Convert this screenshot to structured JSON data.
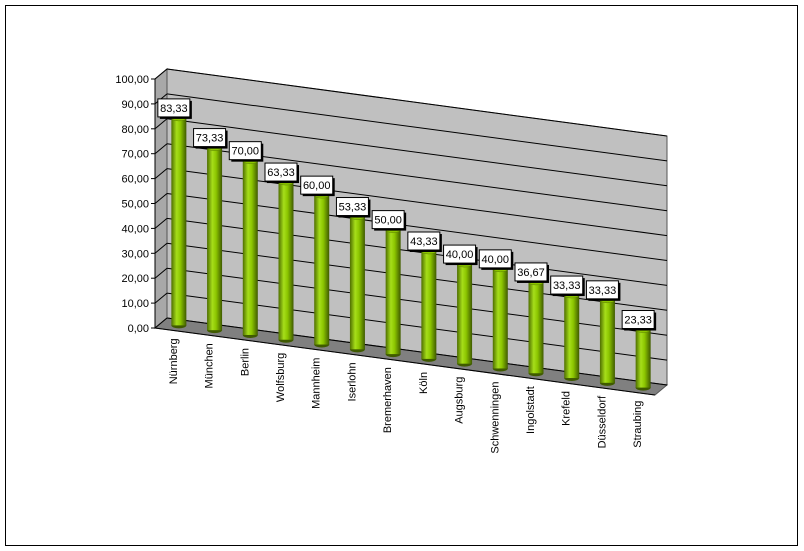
{
  "chart_data": {
    "type": "bar",
    "categories": [
      "Nürnberg",
      "München",
      "Berlin",
      "Wolfsburg",
      "Mannheim",
      "Iserlohn",
      "Bremerhaven",
      "Köln",
      "Augsburg",
      "Schwenningen",
      "Ingolstadt",
      "Krefeld",
      "Düsseldorf",
      "Straubing"
    ],
    "values": [
      83.33,
      73.33,
      70,
      63.33,
      60,
      53.33,
      50,
      43.33,
      40,
      40,
      36.67,
      33.33,
      33.33,
      23.33
    ],
    "value_labels": [
      "83,33",
      "73,33",
      "70,00",
      "63,33",
      "60,00",
      "53,33",
      "50,00",
      "43,33",
      "40,00",
      "40,00",
      "36,67",
      "33,33",
      "33,33",
      "23,33"
    ],
    "color": "#8cc600",
    "ylim": [
      0,
      100
    ],
    "yticks": [
      {
        "value": 0,
        "label": "0,00"
      },
      {
        "value": 10,
        "label": "10,00"
      },
      {
        "value": 20,
        "label": "20,00"
      },
      {
        "value": 30,
        "label": "30,00"
      },
      {
        "value": 40,
        "label": "40,00"
      },
      {
        "value": 50,
        "label": "50,00"
      },
      {
        "value": 60,
        "label": "60,00"
      },
      {
        "value": 70,
        "label": "70,00"
      },
      {
        "value": 80,
        "label": "80,00"
      },
      {
        "value": 90,
        "label": "90,00"
      },
      {
        "value": 100,
        "label": "100,00"
      }
    ],
    "grid": true
  }
}
